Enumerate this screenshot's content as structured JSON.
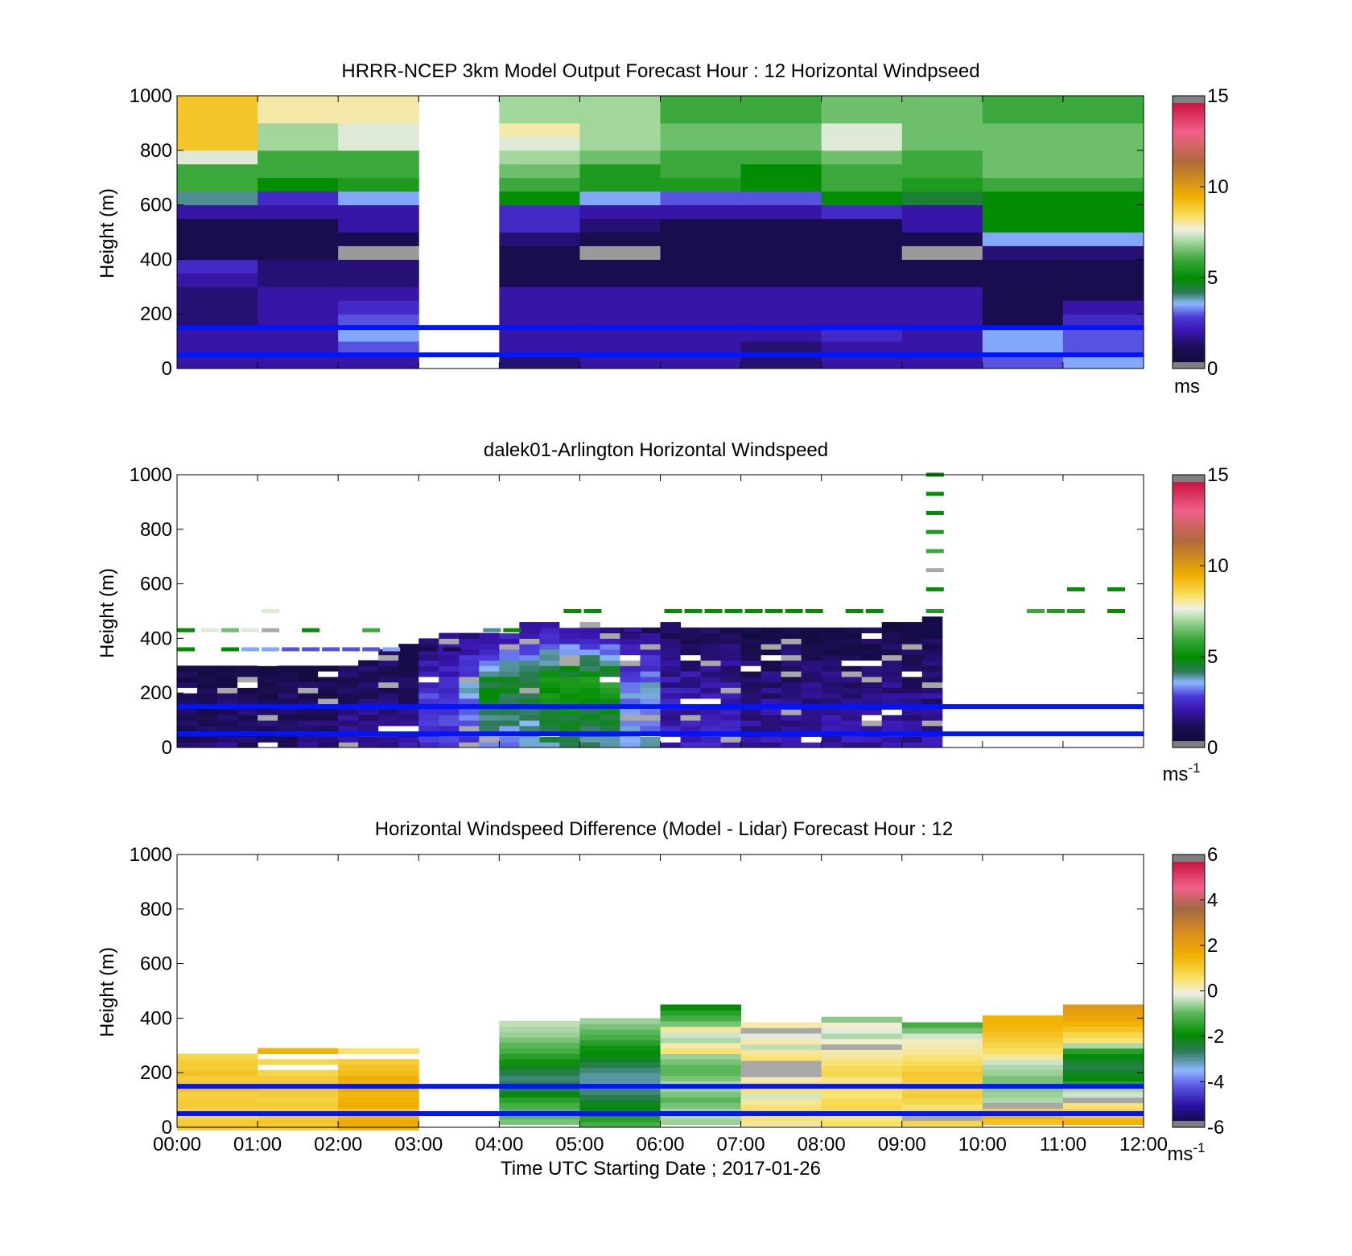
{
  "chart_data": [
    {
      "type": "heatmap",
      "title": "HRRR-NCEP 3km Model Output   Forecast Hour : 12 Horizontal Windpseed",
      "ylabel": "Height (m)",
      "ylim": [
        0,
        1000
      ],
      "yticks": [
        0,
        200,
        400,
        600,
        800,
        1000
      ],
      "xlim": [
        "00:00",
        "12:00"
      ],
      "grid": false,
      "reference_lines_m": [
        150,
        50
      ],
      "colorbar": {
        "vmin": 0,
        "vmax": 15,
        "ticks": [
          0,
          5,
          10,
          15
        ],
        "unit": "ms",
        "scale": "windspeed"
      },
      "cell_height_m": 50,
      "columns": [
        {
          "t0": 0,
          "t1": 1,
          "missing": false,
          "values": [
            2,
            2,
            2,
            1.5,
            1.5,
            1.5,
            2,
            2.5,
            1,
            1,
            1,
            2,
            4,
            6,
            6,
            7.5,
            9,
            9,
            9,
            9
          ]
        },
        {
          "t0": 1,
          "t1": 2,
          "missing": false,
          "values": [
            2,
            2,
            2,
            2,
            2,
            2,
            1.5,
            1.5,
            1,
            1,
            1,
            2,
            2.5,
            5,
            6,
            6,
            7,
            7,
            8,
            8
          ]
        },
        {
          "t0": 2,
          "t1": 3,
          "missing": false,
          "values": [
            2,
            3,
            3.5,
            3,
            2.5,
            2,
            1.5,
            1.5,
            0,
            1,
            2,
            2,
            3.5,
            5.5,
            6,
            6,
            7.5,
            7.5,
            8,
            8
          ]
        },
        {
          "t0": 3,
          "t1": 4,
          "missing": true,
          "values": []
        },
        {
          "t0": 4,
          "t1": 5,
          "missing": false,
          "values": [
            1.5,
            2,
            2,
            2,
            2,
            2,
            1,
            1,
            1,
            1.5,
            2.5,
            2.5,
            5,
            6,
            6.5,
            7,
            7.5,
            8,
            7,
            7
          ]
        },
        {
          "t0": 5,
          "t1": 6,
          "missing": false,
          "values": [
            2,
            2,
            2,
            2,
            2,
            2,
            1,
            1,
            0,
            1,
            1.5,
            2,
            3.5,
            5.5,
            5.5,
            6.5,
            7,
            7,
            7,
            7
          ]
        },
        {
          "t0": 6,
          "t1": 7,
          "missing": false,
          "values": [
            2,
            2,
            2,
            2,
            2,
            2,
            1,
            1,
            1,
            1,
            1,
            2,
            3,
            5.5,
            6,
            6,
            6.5,
            6.5,
            6,
            6
          ]
        },
        {
          "t0": 7,
          "t1": 8,
          "missing": false,
          "values": [
            1.5,
            1.5,
            2,
            2,
            2,
            2,
            1,
            1,
            1,
            1,
            1,
            2,
            3,
            5,
            5,
            6,
            6.5,
            6.5,
            6,
            6
          ]
        },
        {
          "t0": 8,
          "t1": 9,
          "missing": false,
          "values": [
            2,
            2,
            2.5,
            2,
            2,
            2,
            1,
            1,
            1,
            1,
            1,
            2.5,
            5,
            6,
            6,
            6.5,
            7.5,
            7.5,
            6.5,
            6.5
          ]
        },
        {
          "t0": 9,
          "t1": 10,
          "missing": false,
          "values": [
            2,
            2,
            2,
            2,
            2,
            2,
            1,
            1,
            0,
            1,
            2,
            2,
            4.5,
            5.5,
            6,
            6,
            6.5,
            6.5,
            6.5,
            6.5
          ]
        },
        {
          "t0": 10,
          "t1": 11,
          "missing": false,
          "values": [
            3,
            3.5,
            3.5,
            1,
            1,
            1,
            1,
            1,
            1.5,
            3.5,
            5,
            5,
            5,
            6,
            6.5,
            6.5,
            6.5,
            6.5,
            6,
            6
          ]
        },
        {
          "t0": 11,
          "t1": 12,
          "missing": false,
          "values": [
            3.5,
            3,
            3,
            2.5,
            2,
            1,
            1,
            1,
            1.5,
            3.5,
            5,
            5,
            5,
            6,
            6.5,
            6.5,
            6.5,
            6.5,
            6,
            6
          ]
        }
      ]
    },
    {
      "type": "heatmap",
      "title": "dalek01-Arlington  Horizontal Windspeed",
      "ylabel": "Height (m)",
      "ylim": [
        0,
        1000
      ],
      "yticks": [
        0,
        200,
        400,
        600,
        800,
        1000
      ],
      "xlim": [
        "00:00",
        "12:00"
      ],
      "grid": false,
      "reference_lines_m": [
        150,
        50
      ],
      "colorbar": {
        "vmin": 0,
        "vmax": 15,
        "ticks": [
          0,
          5,
          10,
          15
        ],
        "unit": "ms-1",
        "scale": "windspeed"
      },
      "profile_interval_min": 15,
      "range_gate_m": 20,
      "profile_tops_m": [
        290,
        300,
        300,
        295,
        305,
        300,
        300,
        290,
        300,
        320,
        360,
        380,
        400,
        420,
        410,
        420,
        440,
        460,
        460,
        450,
        450,
        440,
        430,
        440,
        450,
        440,
        430,
        430,
        430,
        430,
        430,
        430,
        430,
        430,
        440,
        450,
        460,
        470
      ],
      "speed_profiles": [
        {
          "t0": 0.0,
          "t1": 2.0,
          "bottom": 1.5,
          "mid": 1.2,
          "top": 0.8
        },
        {
          "t0": 2.0,
          "t1": 2.8,
          "bottom": 2.0,
          "mid": 1.5,
          "top": 1.0
        },
        {
          "t0": 2.8,
          "t1": 3.3,
          "bottom": 2.5,
          "mid": 2.8,
          "top": 1.5
        },
        {
          "t0": 3.3,
          "t1": 3.6,
          "bottom": 3.0,
          "mid": 3.5,
          "top": 1.5
        },
        {
          "t0": 3.6,
          "t1": 4.4,
          "bottom": 3.5,
          "mid": 4.8,
          "top": 1.5
        },
        {
          "t0": 4.4,
          "t1": 5.5,
          "bottom": 4.0,
          "mid": 5.5,
          "top": 1.5
        },
        {
          "t0": 5.5,
          "t1": 6.0,
          "bottom": 3.5,
          "mid": 3.5,
          "top": 1.2
        },
        {
          "t0": 6.0,
          "t1": 7.0,
          "bottom": 2.2,
          "mid": 2.0,
          "top": 1.0
        },
        {
          "t0": 7.0,
          "t1": 9.0,
          "bottom": 2.0,
          "mid": 1.6,
          "top": 0.8
        },
        {
          "t0": 9.0,
          "t1": 10.0,
          "bottom": 2.0,
          "mid": 1.5,
          "top": 0.8
        },
        {
          "t0": 10.0,
          "t1": 11.0,
          "bottom": 1.5,
          "mid": 1.3,
          "top": 0.8
        },
        {
          "t0": 11.0,
          "t1": 11.35,
          "bottom": 2.5,
          "mid": 2.5,
          "top": 1.0
        },
        {
          "t0": 11.35,
          "t1": 11.85,
          "bottom": 3.5,
          "mid": 3.5,
          "top": 1.5
        }
      ],
      "aloft_returns": [
        {
          "t": 0.0,
          "h": 360,
          "v": 5.0
        },
        {
          "t": 0.0,
          "h": 430,
          "v": 5.0
        },
        {
          "t": 0.3,
          "h": 430,
          "v": 7.5
        },
        {
          "t": 0.55,
          "h": 360,
          "v": 5.0
        },
        {
          "t": 0.55,
          "h": 430,
          "v": 6.5
        },
        {
          "t": 0.8,
          "h": 360,
          "v": 3.5
        },
        {
          "t": 0.8,
          "h": 430,
          "v": 7.5
        },
        {
          "t": 1.05,
          "h": 360,
          "v": 3.5
        },
        {
          "t": 1.05,
          "h": 430,
          "v": 0
        },
        {
          "t": 1.05,
          "h": 500,
          "v": 7.5
        },
        {
          "t": 1.3,
          "h": 360,
          "v": 3.0
        },
        {
          "t": 1.55,
          "h": 360,
          "v": 3.0
        },
        {
          "t": 1.55,
          "h": 430,
          "v": 5.0
        },
        {
          "t": 1.8,
          "h": 360,
          "v": 3.0
        },
        {
          "t": 2.05,
          "h": 360,
          "v": 3.0
        },
        {
          "t": 2.3,
          "h": 360,
          "v": 3.0
        },
        {
          "t": 2.3,
          "h": 430,
          "v": 6.0
        },
        {
          "t": 2.55,
          "h": 360,
          "v": 3.5
        },
        {
          "t": 3.0,
          "h": 360,
          "v": 1.0
        },
        {
          "t": 3.3,
          "h": 360,
          "v": 0.8
        },
        {
          "t": 3.8,
          "h": 430,
          "v": 4.0
        },
        {
          "t": 4.05,
          "h": 430,
          "v": 5.0
        },
        {
          "t": 4.3,
          "h": 430,
          "v": 2.0
        },
        {
          "t": 4.8,
          "h": 500,
          "v": 5.0
        },
        {
          "t": 5.05,
          "h": 500,
          "v": 5.0
        },
        {
          "t": 5.55,
          "h": 430,
          "v": 2.0
        },
        {
          "t": 6.05,
          "h": 500,
          "v": 5.0
        },
        {
          "t": 6.3,
          "h": 500,
          "v": 5.0
        },
        {
          "t": 6.55,
          "h": 500,
          "v": 5.0
        },
        {
          "t": 6.8,
          "h": 500,
          "v": 5.0
        },
        {
          "t": 7.05,
          "h": 500,
          "v": 5.0
        },
        {
          "t": 7.3,
          "h": 500,
          "v": 5.0
        },
        {
          "t": 7.55,
          "h": 500,
          "v": 5.0
        },
        {
          "t": 7.8,
          "h": 500,
          "v": 5.0
        },
        {
          "t": 8.3,
          "h": 500,
          "v": 5.0
        },
        {
          "t": 8.55,
          "h": 500,
          "v": 5.0
        },
        {
          "t": 9.3,
          "h": 1000,
          "v": 5.0
        },
        {
          "t": 9.3,
          "h": 930,
          "v": 5.0
        },
        {
          "t": 9.3,
          "h": 860,
          "v": 5.0
        },
        {
          "t": 9.3,
          "h": 790,
          "v": 5.5
        },
        {
          "t": 9.3,
          "h": 720,
          "v": 6.0
        },
        {
          "t": 9.3,
          "h": 650,
          "v": 0
        },
        {
          "t": 9.3,
          "h": 580,
          "v": 5.0
        },
        {
          "t": 9.3,
          "h": 500,
          "v": 5.5
        },
        {
          "t": 10.55,
          "h": 500,
          "v": 6.0
        },
        {
          "t": 10.8,
          "h": 500,
          "v": 5.5
        },
        {
          "t": 11.05,
          "h": 500,
          "v": 5.5
        },
        {
          "t": 11.05,
          "h": 580,
          "v": 5.0
        },
        {
          "t": 11.55,
          "h": 500,
          "v": 5.0
        },
        {
          "t": 11.55,
          "h": 580,
          "v": 5.0
        }
      ]
    },
    {
      "type": "heatmap",
      "title": "Horizontal Windspeed Difference (Model - Lidar) Forecast Hour : 12",
      "ylabel": "Height (m)",
      "xlabel": "Time UTC  Starting Date ; 2017-01-26",
      "ylim": [
        0,
        1000
      ],
      "yticks": [
        0,
        200,
        400,
        600,
        800,
        1000
      ],
      "xticks": [
        "00:00",
        "01:00",
        "02:00",
        "03:00",
        "04:00",
        "05:00",
        "06:00",
        "07:00",
        "08:00",
        "09:00",
        "10:00",
        "11:00",
        "12:00"
      ],
      "grid": false,
      "reference_lines_m": [
        150,
        50
      ],
      "colorbar": {
        "vmin": -6,
        "vmax": 6,
        "ticks": [
          -6,
          -4,
          -2,
          0,
          2,
          4,
          6
        ],
        "unit": "ms-1",
        "scale": "difference"
      },
      "cell_height_m": 20,
      "columns": [
        {
          "t0": 0,
          "t1": 1,
          "top": 270,
          "values": [
            1.0,
            1.0,
            0.8,
            0.9,
            1.0,
            1.0,
            0.9,
            1.2,
            1.1,
            1.0,
            1.2,
            1.0,
            1.0,
            0.8
          ]
        },
        {
          "t0": 1,
          "t1": 2,
          "top": 290,
          "values": [
            1.0,
            1.1,
            1.0,
            0.9,
            1.0,
            0.9,
            1.0,
            1.1,
            1.0,
            1.0,
            0.8,
            null,
            0.8,
            null,
            1.5
          ]
        },
        {
          "t0": 2,
          "t1": 3,
          "top": 290,
          "values": [
            1.5,
            1.8,
            1.5,
            1.2,
            1.6,
            1.5,
            1.4,
            1.6,
            1.5,
            1.6,
            1.3,
            1.2,
            1.0,
            null,
            0.5
          ]
        },
        {
          "t0": 3,
          "t1": 4,
          "top": 0,
          "values": []
        },
        {
          "t0": 4,
          "t1": 5,
          "top": 390,
          "values": [
            -0.8,
            -1.0,
            -1.0,
            -1.2,
            -1.5,
            -2.0,
            -2.5,
            -2.5,
            -2.8,
            -2.5,
            -2.2,
            -1.8,
            -1.5,
            -1.2,
            -1.0,
            -0.8,
            -0.6,
            -0.5,
            -0.4
          ]
        },
        {
          "t0": 5,
          "t1": 6,
          "top": 400,
          "values": [
            -1.2,
            -1.5,
            -1.8,
            -2.0,
            -2.2,
            -2.5,
            -2.8,
            -3.0,
            -3.0,
            -3.0,
            -2.8,
            -2.5,
            -2.2,
            -2.0,
            -1.8,
            -1.5,
            -1.2,
            -1.0,
            -0.8,
            -0.6
          ]
        },
        {
          "t0": 6,
          "t1": 7,
          "top": 450,
          "values": [
            -0.6,
            -0.5,
            -0.6,
            -0.8,
            -1.0,
            -0.8,
            -0.6,
            -0.5,
            -0.8,
            -1.0,
            -1.0,
            -0.8,
            -0.6,
            0.5,
            0.2,
            -0.5,
            -0.3,
            0.3,
            -0.8,
            -1.2,
            -1.5,
            -2.0
          ]
        },
        {
          "t0": 7,
          "t1": 8,
          "top": 385,
          "values": [
            0.3,
            0.5,
            0.8,
            0.5,
            0.3,
            -0.3,
            0.5,
            0.7,
            0.2,
            -7,
            -7,
            -7,
            0.5,
            0.3,
            -0.4,
            0.2,
            -0.2,
            -7,
            0.2
          ]
        },
        {
          "t0": 8,
          "t1": 9,
          "top": 425,
          "values": [
            0.6,
            0.4,
            0.5,
            0.8,
            0.7,
            0.5,
            0.6,
            0.5,
            0.4,
            0.8,
            0.7,
            0.5,
            0.3,
            0.2,
            -7,
            0.0,
            -0.5,
            -0.2,
            0.0,
            -0.7,
            null
          ]
        },
        {
          "t0": 9,
          "t1": 10,
          "top": 385,
          "values": [
            0.8,
            -7,
            0.6,
            0.5,
            0.8,
            1.0,
            0.9,
            0.8,
            1.0,
            1.1,
            0.9,
            0.7,
            0.5,
            0.3,
            0.2,
            0.1,
            -0.3,
            -0.8,
            -1.2
          ]
        },
        {
          "t0": 10,
          "t1": 11,
          "top": 410,
          "values": [
            1.2,
            1.5,
            1.0,
            -7,
            -0.5,
            -0.6,
            -0.7,
            -0.8,
            -0.8,
            -0.6,
            -0.5,
            -0.3,
            0.3,
            0.6,
            0.8,
            1.0,
            1.2,
            1.4,
            1.5,
            1.5
          ]
        },
        {
          "t0": 11,
          "t1": 12,
          "top": 450,
          "values": [
            1.5,
            1.2,
            0.8,
            0.5,
            -7,
            -0.3,
            -0.5,
            -1.5,
            -2.0,
            -2.2,
            -2.5,
            -2.3,
            -2.0,
            -1.5,
            -0.5,
            0.5,
            0.8,
            1.2,
            1.5,
            1.8,
            2.0,
            2.2
          ]
        }
      ]
    }
  ]
}
